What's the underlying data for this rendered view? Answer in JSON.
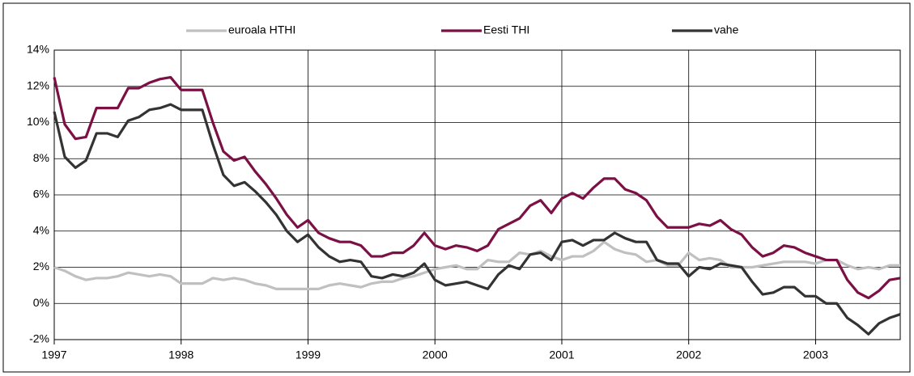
{
  "chart_data": {
    "type": "line",
    "x": [
      1997,
      1997.083,
      1997.167,
      1997.25,
      1997.333,
      1997.417,
      1997.5,
      1997.583,
      1997.667,
      1997.75,
      1997.833,
      1997.917,
      1998,
      1998.083,
      1998.167,
      1998.25,
      1998.333,
      1998.417,
      1998.5,
      1998.583,
      1998.667,
      1998.75,
      1998.833,
      1998.917,
      1999,
      1999.083,
      1999.167,
      1999.25,
      1999.333,
      1999.417,
      1999.5,
      1999.583,
      1999.667,
      1999.75,
      1999.833,
      1999.917,
      2000,
      2000.083,
      2000.167,
      2000.25,
      2000.333,
      2000.417,
      2000.5,
      2000.583,
      2000.667,
      2000.75,
      2000.833,
      2000.917,
      2001,
      2001.083,
      2001.167,
      2001.25,
      2001.333,
      2001.417,
      2001.5,
      2001.583,
      2001.667,
      2001.75,
      2001.833,
      2001.917,
      2002,
      2002.083,
      2002.167,
      2002.25,
      2002.333,
      2002.417,
      2002.5,
      2002.583,
      2002.667,
      2002.75,
      2002.833,
      2002.917,
      2003,
      2003.083,
      2003.167,
      2003.25,
      2003.333,
      2003.417,
      2003.5,
      2003.583,
      2003.667
    ],
    "series": [
      {
        "name": "euroala HTHI",
        "color": "#c0c0c0",
        "values": [
          2.0,
          1.8,
          1.5,
          1.3,
          1.4,
          1.4,
          1.5,
          1.7,
          1.6,
          1.5,
          1.6,
          1.5,
          1.1,
          1.1,
          1.1,
          1.4,
          1.3,
          1.4,
          1.3,
          1.1,
          1.0,
          0.8,
          0.8,
          0.8,
          0.8,
          0.8,
          1.0,
          1.1,
          1.0,
          0.9,
          1.1,
          1.2,
          1.2,
          1.4,
          1.5,
          1.7,
          1.9,
          2.0,
          2.1,
          1.9,
          1.9,
          2.4,
          2.3,
          2.3,
          2.8,
          2.7,
          2.9,
          2.6,
          2.4,
          2.6,
          2.6,
          2.9,
          3.4,
          3.0,
          2.8,
          2.7,
          2.3,
          2.4,
          2.1,
          2.1,
          2.8,
          2.4,
          2.5,
          2.4,
          2.0,
          2.0,
          2.0,
          2.1,
          2.2,
          2.3,
          2.3,
          2.3,
          2.2,
          2.4,
          2.4,
          2.1,
          1.9,
          2.0,
          1.9,
          2.1,
          2.1
        ]
      },
      {
        "name": "Eesti THI",
        "color": "#7b1045",
        "values": [
          12.5,
          9.9,
          9.1,
          9.2,
          10.8,
          10.8,
          10.8,
          11.9,
          11.9,
          12.2,
          12.4,
          12.5,
          11.8,
          11.8,
          11.8,
          10.0,
          8.4,
          7.9,
          8.1,
          7.3,
          6.6,
          5.8,
          4.9,
          4.2,
          4.6,
          3.9,
          3.6,
          3.4,
          3.4,
          3.2,
          2.6,
          2.6,
          2.8,
          2.8,
          3.2,
          3.9,
          3.2,
          3.0,
          3.2,
          3.1,
          2.9,
          3.2,
          4.1,
          4.4,
          4.7,
          5.4,
          5.7,
          5.0,
          5.8,
          6.1,
          5.8,
          6.4,
          6.9,
          6.9,
          6.3,
          6.1,
          5.7,
          4.8,
          4.2,
          4.2,
          4.2,
          4.4,
          4.3,
          4.6,
          4.1,
          3.8,
          3.1,
          2.6,
          2.8,
          3.2,
          3.1,
          2.8,
          2.6,
          2.4,
          2.4,
          1.3,
          0.6,
          0.3,
          0.7,
          1.3,
          1.4
        ]
      },
      {
        "name": "vahe",
        "color": "#333333",
        "values": [
          10.6,
          8.1,
          7.5,
          7.9,
          9.4,
          9.4,
          9.2,
          10.1,
          10.3,
          10.7,
          10.8,
          11.0,
          10.7,
          10.7,
          10.7,
          8.8,
          7.1,
          6.5,
          6.7,
          6.2,
          5.6,
          4.9,
          4.0,
          3.4,
          3.8,
          3.1,
          2.6,
          2.3,
          2.4,
          2.3,
          1.5,
          1.4,
          1.6,
          1.5,
          1.7,
          2.2,
          1.3,
          1.0,
          1.1,
          1.2,
          1.0,
          0.8,
          1.6,
          2.1,
          1.9,
          2.7,
          2.8,
          2.4,
          3.4,
          3.5,
          3.2,
          3.5,
          3.5,
          3.9,
          3.6,
          3.4,
          3.4,
          2.4,
          2.2,
          2.2,
          1.5,
          2.0,
          1.9,
          2.2,
          2.1,
          2.0,
          1.2,
          0.5,
          0.6,
          0.9,
          0.9,
          0.4,
          0.4,
          0.0,
          0.0,
          -0.8,
          -1.2,
          -1.7,
          -1.1,
          -0.8,
          -0.6
        ]
      }
    ],
    "xlim": [
      1997,
      2003.667
    ],
    "xticks": [
      1997,
      1998,
      1999,
      2000,
      2001,
      2002,
      2003
    ],
    "ylim": [
      -2,
      14
    ],
    "yticks": [
      {
        "value": -2,
        "label": "-2%"
      },
      {
        "value": 0,
        "label": "0%"
      },
      {
        "value": 2,
        "label": "2%"
      },
      {
        "value": 4,
        "label": "4%"
      },
      {
        "value": 6,
        "label": "6%"
      },
      {
        "value": 8,
        "label": "8%"
      },
      {
        "value": 10,
        "label": "10%"
      },
      {
        "value": 12,
        "label": "12%"
      },
      {
        "value": 14,
        "label": "14%"
      }
    ],
    "grid": true,
    "legend": "top"
  }
}
